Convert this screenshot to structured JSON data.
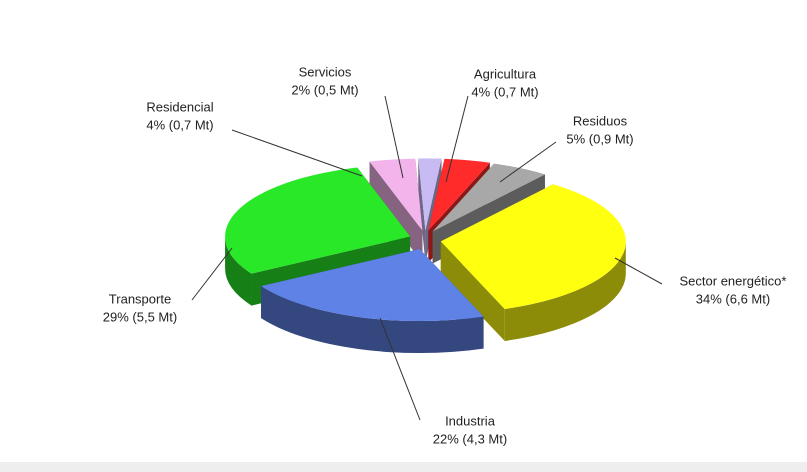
{
  "chart_data": {
    "type": "pie",
    "categories": [
      "Agricultura",
      "Residuos",
      "Sector energético*",
      "Industria",
      "Transporte",
      "Residencial",
      "Servicios"
    ],
    "values": [
      4,
      5,
      34,
      22,
      29,
      4,
      2
    ],
    "value_labels": [
      "4% (0,7 Mt)",
      "5% (0,9 Mt)",
      "34% (6,6 Mt)",
      "22% (4,3 Mt)",
      "29% (5,5 Mt)",
      "4% (0,7 Mt)",
      "2% (0,5 Mt)"
    ],
    "colors": [
      "#ff2a2a",
      "#a8a8a8",
      "#ffff10",
      "#5f82e6",
      "#28e828",
      "#f2b4ea",
      "#c8baf2"
    ]
  }
}
